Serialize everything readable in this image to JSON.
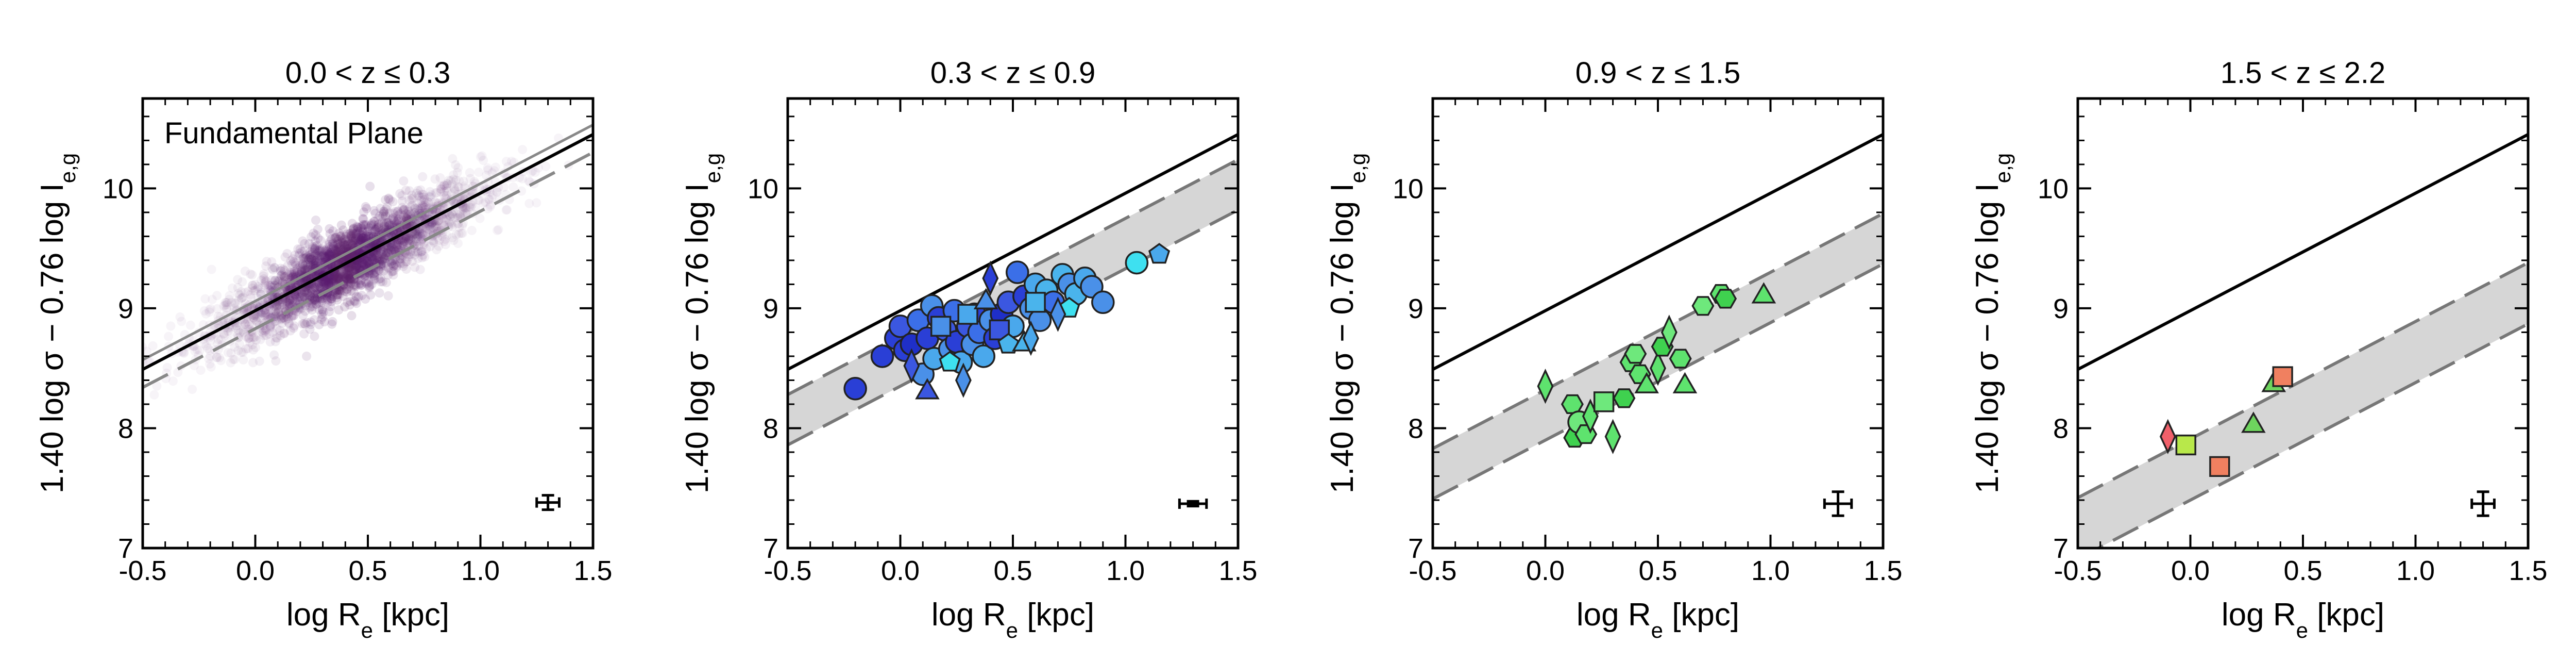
{
  "chart_data": [
    {
      "type": "scatter",
      "title": "0.0 < z ≤ 0.3",
      "annotation": "Fundamental Plane",
      "xlabel": "log R_e [kpc]",
      "ylabel": "1.40 log σ − 0.76 log I_e,g",
      "xlim": [
        -0.5,
        1.5
      ],
      "ylim": [
        7,
        10.75
      ],
      "xticks": [
        -0.5,
        0.0,
        0.5,
        1.0,
        1.5
      ],
      "yticks": [
        7,
        8,
        9,
        10
      ],
      "reference_line": {
        "slope": 0.98,
        "intercept": 8.98
      },
      "band": null,
      "cloud": {
        "color": "#5b1f6e",
        "x_center": 0.4,
        "x_spread": 0.3,
        "y_scatter": 0.15,
        "slope": 0.98,
        "intercept": 8.98
      },
      "error_bar": {
        "x": 1.3,
        "y": 7.38,
        "xerr": 0.05,
        "yerr": 0.06
      },
      "points": []
    },
    {
      "type": "scatter",
      "title": "0.3 < z ≤ 0.9",
      "xlabel": "log R_e [kpc]",
      "ylabel": "1.40 log σ − 0.76 log I_e,g",
      "xlim": [
        -0.5,
        1.5
      ],
      "ylim": [
        7,
        10.75
      ],
      "xticks": [
        -0.5,
        0.0,
        0.5,
        1.0,
        1.5
      ],
      "yticks": [
        7,
        8,
        9,
        10
      ],
      "reference_line": {
        "slope": 0.98,
        "intercept": 8.98
      },
      "band": {
        "slope": 0.98,
        "upper": 8.77,
        "lower": 8.35
      },
      "error_bar": {
        "x": 1.3,
        "y": 7.37,
        "xerr": 0.06,
        "yerr": 0.02
      },
      "points": [
        {
          "x": -0.2,
          "y": 8.33,
          "shape": "circle",
          "color": "#2a3fd6"
        },
        {
          "x": -0.08,
          "y": 8.6,
          "shape": "circle",
          "color": "#2a3fd6"
        },
        {
          "x": -0.02,
          "y": 8.75,
          "shape": "circle",
          "color": "#2a3fd6"
        },
        {
          "x": 0.0,
          "y": 8.85,
          "shape": "circle",
          "color": "#3b57e0"
        },
        {
          "x": 0.02,
          "y": 8.65,
          "shape": "circle",
          "color": "#2a3fd6"
        },
        {
          "x": 0.05,
          "y": 8.7,
          "shape": "circle",
          "color": "#1f2fc8"
        },
        {
          "x": 0.08,
          "y": 8.9,
          "shape": "circle",
          "color": "#3b6fe8"
        },
        {
          "x": 0.1,
          "y": 8.45,
          "shape": "circle",
          "color": "#4a90e8"
        },
        {
          "x": 0.12,
          "y": 8.75,
          "shape": "circle",
          "color": "#2a3fd6"
        },
        {
          "x": 0.14,
          "y": 9.02,
          "shape": "circle",
          "color": "#4a90e8"
        },
        {
          "x": 0.15,
          "y": 8.58,
          "shape": "circle",
          "color": "#4aa8ec"
        },
        {
          "x": 0.17,
          "y": 8.92,
          "shape": "circle",
          "color": "#2a3fd6"
        },
        {
          "x": 0.2,
          "y": 8.82,
          "shape": "circle",
          "color": "#3b57e0"
        },
        {
          "x": 0.22,
          "y": 8.66,
          "shape": "circle",
          "color": "#4a90e8"
        },
        {
          "x": 0.24,
          "y": 8.98,
          "shape": "circle",
          "color": "#3b6fe8"
        },
        {
          "x": 0.25,
          "y": 8.72,
          "shape": "circle",
          "color": "#2a3fd6"
        },
        {
          "x": 0.27,
          "y": 8.55,
          "shape": "circle",
          "color": "#4aa8ec"
        },
        {
          "x": 0.3,
          "y": 8.85,
          "shape": "circle",
          "color": "#3b57e0"
        },
        {
          "x": 0.32,
          "y": 8.7,
          "shape": "circle",
          "color": "#4a90e8"
        },
        {
          "x": 0.33,
          "y": 8.95,
          "shape": "circle",
          "color": "#2a3fd6"
        },
        {
          "x": 0.35,
          "y": 8.8,
          "shape": "circle",
          "color": "#3b6fe8"
        },
        {
          "x": 0.37,
          "y": 8.6,
          "shape": "circle",
          "color": "#4aa8ec"
        },
        {
          "x": 0.4,
          "y": 8.9,
          "shape": "circle",
          "color": "#4a90e8"
        },
        {
          "x": 0.42,
          "y": 8.75,
          "shape": "circle",
          "color": "#2a3fd6"
        },
        {
          "x": 0.45,
          "y": 8.95,
          "shape": "circle",
          "color": "#1f2fc8"
        },
        {
          "x": 0.48,
          "y": 9.05,
          "shape": "circle",
          "color": "#3b57e0"
        },
        {
          "x": 0.5,
          "y": 8.85,
          "shape": "circle",
          "color": "#4aa8ec"
        },
        {
          "x": 0.52,
          "y": 9.3,
          "shape": "circle",
          "color": "#3b6fe8"
        },
        {
          "x": 0.55,
          "y": 9.1,
          "shape": "circle",
          "color": "#2a3fd6"
        },
        {
          "x": 0.58,
          "y": 9.0,
          "shape": "circle",
          "color": "#4a90e8"
        },
        {
          "x": 0.6,
          "y": 9.2,
          "shape": "circle",
          "color": "#4aa8ec"
        },
        {
          "x": 0.62,
          "y": 8.9,
          "shape": "circle",
          "color": "#4a90e8"
        },
        {
          "x": 0.65,
          "y": 9.15,
          "shape": "circle",
          "color": "#4ab4ec"
        },
        {
          "x": 0.68,
          "y": 9.05,
          "shape": "circle",
          "color": "#3b6fe8"
        },
        {
          "x": 0.72,
          "y": 9.28,
          "shape": "circle",
          "color": "#4ab4ec"
        },
        {
          "x": 0.75,
          "y": 9.2,
          "shape": "circle",
          "color": "#4a90e8"
        },
        {
          "x": 0.78,
          "y": 9.12,
          "shape": "circle",
          "color": "#4ab4ec"
        },
        {
          "x": 0.82,
          "y": 9.25,
          "shape": "circle",
          "color": "#4aa8ec"
        },
        {
          "x": 0.85,
          "y": 9.18,
          "shape": "circle",
          "color": "#4a90e8"
        },
        {
          "x": 0.9,
          "y": 9.05,
          "shape": "circle",
          "color": "#4a90e8"
        },
        {
          "x": 1.05,
          "y": 9.38,
          "shape": "circle",
          "color": "#3ee0f0"
        },
        {
          "x": 0.18,
          "y": 8.85,
          "shape": "square",
          "color": "#4a90e8"
        },
        {
          "x": 0.3,
          "y": 8.95,
          "shape": "square",
          "color": "#4aa8ec"
        },
        {
          "x": 0.44,
          "y": 8.82,
          "shape": "square",
          "color": "#3b57e0"
        },
        {
          "x": 0.6,
          "y": 9.05,
          "shape": "square",
          "color": "#4ab4ec"
        },
        {
          "x": 0.22,
          "y": 8.55,
          "shape": "pentagon",
          "color": "#3ee0f0"
        },
        {
          "x": 0.48,
          "y": 8.7,
          "shape": "pentagon",
          "color": "#4ab4ec"
        },
        {
          "x": 0.75,
          "y": 9.0,
          "shape": "pentagon",
          "color": "#3ee0f0"
        },
        {
          "x": 1.15,
          "y": 9.45,
          "shape": "pentagon",
          "color": "#4aa8ec"
        },
        {
          "x": 0.38,
          "y": 9.05,
          "shape": "triangle",
          "color": "#4a90e8"
        },
        {
          "x": 0.55,
          "y": 8.7,
          "shape": "triangle",
          "color": "#4ab4ec"
        },
        {
          "x": 0.12,
          "y": 8.3,
          "shape": "triangle",
          "color": "#3b57e0"
        },
        {
          "x": 0.05,
          "y": 8.52,
          "shape": "diamond",
          "color": "#3b57e0"
        },
        {
          "x": 0.28,
          "y": 8.4,
          "shape": "diamond",
          "color": "#4a90e8"
        },
        {
          "x": 0.4,
          "y": 9.25,
          "shape": "diamond",
          "color": "#2a3fd6"
        },
        {
          "x": 0.58,
          "y": 8.75,
          "shape": "diamond",
          "color": "#4aa8ec"
        },
        {
          "x": 0.7,
          "y": 8.95,
          "shape": "diamond",
          "color": "#4a90e8"
        }
      ]
    },
    {
      "type": "scatter",
      "title": "0.9 < z ≤ 1.5",
      "xlabel": "log R_e [kpc]",
      "ylabel": "1.40 log σ − 0.76 log I_e,g",
      "xlim": [
        -0.5,
        1.5
      ],
      "ylim": [
        7,
        10.75
      ],
      "xticks": [
        -0.5,
        0.0,
        0.5,
        1.0,
        1.5
      ],
      "yticks": [
        7,
        8,
        9,
        10
      ],
      "reference_line": {
        "slope": 0.98,
        "intercept": 8.98
      },
      "band": {
        "slope": 0.98,
        "upper": 8.32,
        "lower": 7.9
      },
      "error_bar": {
        "x": 1.3,
        "y": 7.37,
        "xerr": 0.06,
        "yerr": 0.1
      },
      "points": [
        {
          "x": 0.0,
          "y": 8.35,
          "shape": "diamond",
          "color": "#5ee36e"
        },
        {
          "x": 0.12,
          "y": 8.2,
          "shape": "hexagon",
          "color": "#5ee36e"
        },
        {
          "x": 0.13,
          "y": 7.92,
          "shape": "hexagon",
          "color": "#3fd14f"
        },
        {
          "x": 0.15,
          "y": 8.05,
          "shape": "circle",
          "color": "#6ee87c"
        },
        {
          "x": 0.18,
          "y": 7.95,
          "shape": "hexagon",
          "color": "#5ee36e"
        },
        {
          "x": 0.2,
          "y": 8.1,
          "shape": "diamond",
          "color": "#5ee36e"
        },
        {
          "x": 0.26,
          "y": 8.22,
          "shape": "square",
          "color": "#6ee87c"
        },
        {
          "x": 0.3,
          "y": 7.93,
          "shape": "diamond",
          "color": "#5ee36e"
        },
        {
          "x": 0.35,
          "y": 8.25,
          "shape": "hexagon",
          "color": "#3fd14f"
        },
        {
          "x": 0.38,
          "y": 8.55,
          "shape": "hexagon",
          "color": "#5ee36e"
        },
        {
          "x": 0.4,
          "y": 8.62,
          "shape": "hexagon",
          "color": "#6ee87c"
        },
        {
          "x": 0.42,
          "y": 8.45,
          "shape": "hexagon",
          "color": "#5ee36e"
        },
        {
          "x": 0.45,
          "y": 8.35,
          "shape": "triangle",
          "color": "#5ee36e"
        },
        {
          "x": 0.5,
          "y": 8.5,
          "shape": "diamond",
          "color": "#5ee36e"
        },
        {
          "x": 0.52,
          "y": 8.68,
          "shape": "hexagon",
          "color": "#3fd14f"
        },
        {
          "x": 0.55,
          "y": 8.8,
          "shape": "diamond",
          "color": "#6ee87c"
        },
        {
          "x": 0.6,
          "y": 8.58,
          "shape": "hexagon",
          "color": "#5ee36e"
        },
        {
          "x": 0.62,
          "y": 8.35,
          "shape": "triangle",
          "color": "#5ee36e"
        },
        {
          "x": 0.7,
          "y": 9.02,
          "shape": "hexagon",
          "color": "#6ee87c"
        },
        {
          "x": 0.78,
          "y": 9.12,
          "shape": "hexagon",
          "color": "#5ee36e"
        },
        {
          "x": 0.8,
          "y": 9.08,
          "shape": "hexagon",
          "color": "#3fd14f"
        },
        {
          "x": 0.97,
          "y": 9.1,
          "shape": "triangle",
          "color": "#5ee36e"
        }
      ]
    },
    {
      "type": "scatter",
      "title": "1.5 < z ≤ 2.2",
      "xlabel": "log R_e [kpc]",
      "ylabel": "1.40 log σ − 0.76 log I_e,g",
      "xlim": [
        -0.5,
        1.5
      ],
      "ylim": [
        7,
        10.75
      ],
      "xticks": [
        -0.5,
        0.0,
        0.5,
        1.0,
        1.5
      ],
      "yticks": [
        7,
        8,
        9,
        10
      ],
      "reference_line": {
        "slope": 0.98,
        "intercept": 8.98
      },
      "band": {
        "slope": 0.98,
        "upper": 7.91,
        "lower": 7.4
      },
      "error_bar": {
        "x": 1.3,
        "y": 7.37,
        "xerr": 0.05,
        "yerr": 0.1
      },
      "points": [
        {
          "x": -0.1,
          "y": 7.93,
          "shape": "diamond",
          "color": "#f0606a"
        },
        {
          "x": -0.02,
          "y": 7.86,
          "shape": "square",
          "color": "#b8e84a"
        },
        {
          "x": 0.13,
          "y": 7.68,
          "shape": "square",
          "color": "#f08060"
        },
        {
          "x": 0.28,
          "y": 8.02,
          "shape": "triangle",
          "color": "#6ed45e"
        },
        {
          "x": 0.37,
          "y": 8.36,
          "shape": "triangle",
          "color": "#6ed45e"
        },
        {
          "x": 0.41,
          "y": 8.43,
          "shape": "square",
          "color": "#f08060"
        }
      ]
    }
  ]
}
